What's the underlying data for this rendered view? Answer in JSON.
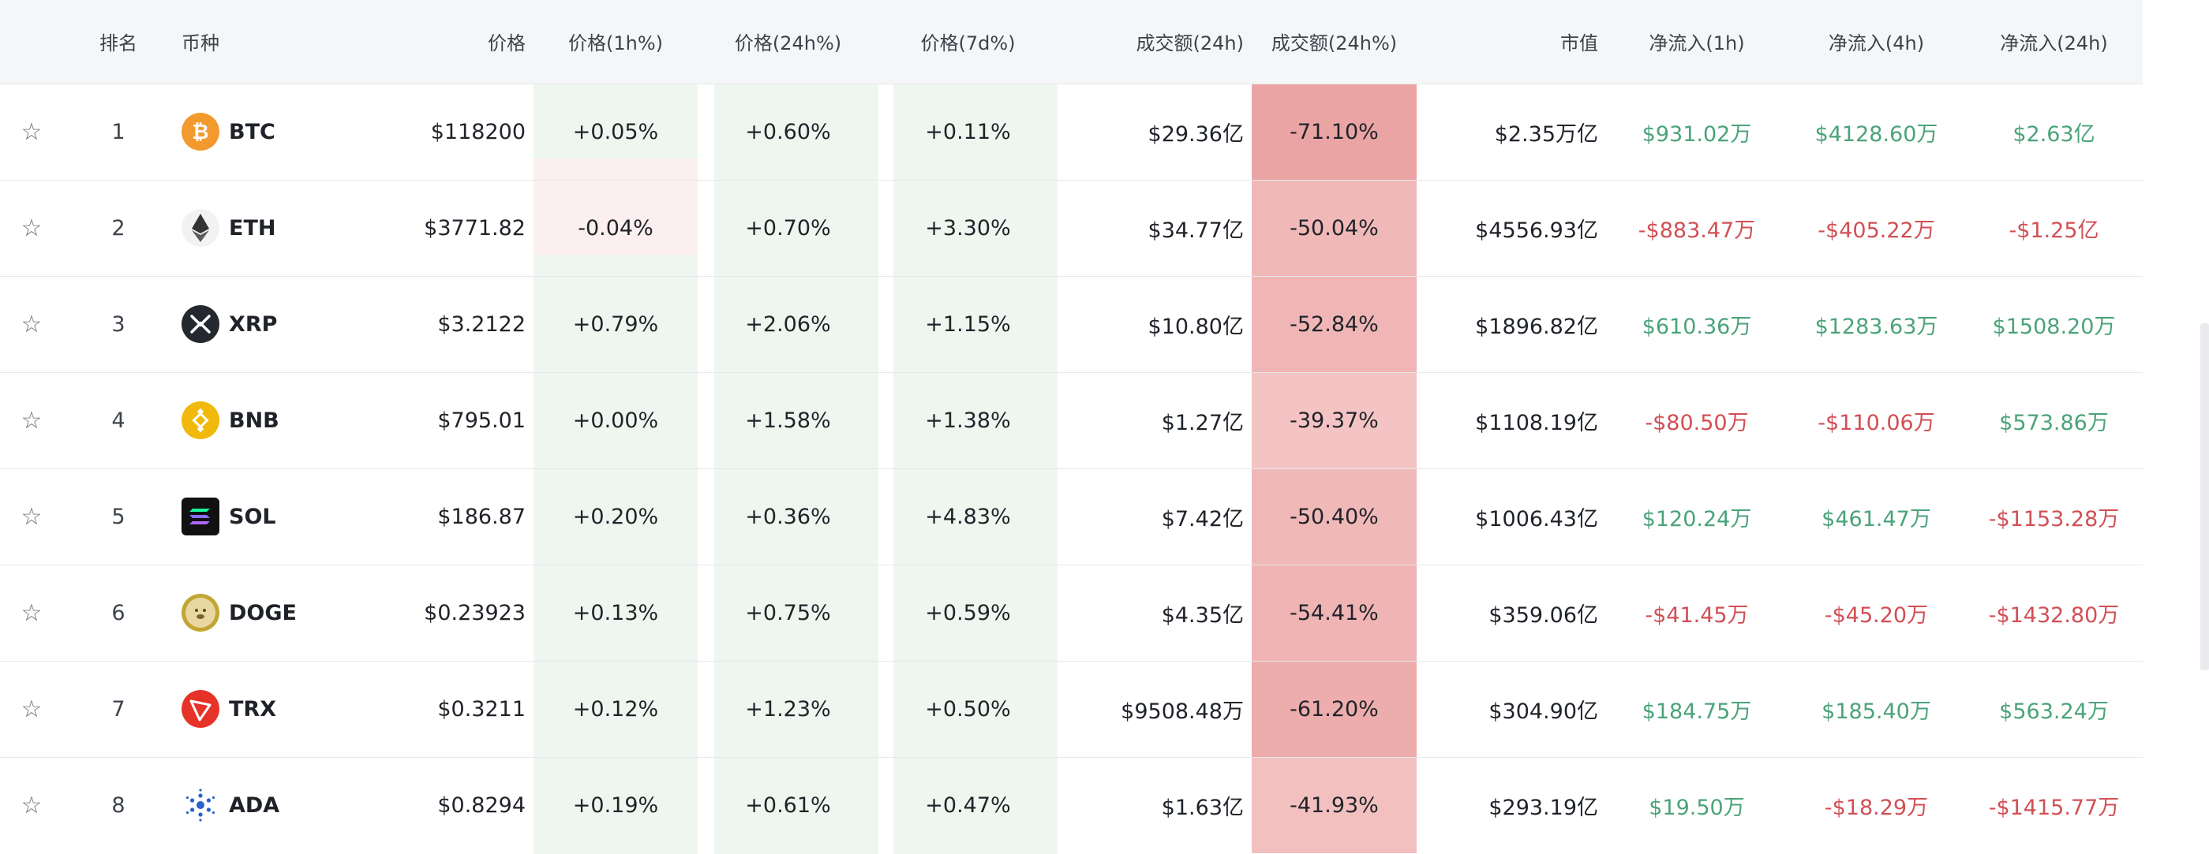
{
  "headers": {
    "rank": "排名",
    "coin": "币种",
    "price": "价格",
    "change_1h": "价格(1h%)",
    "change_24h": "价格(24h%)",
    "change_7d": "价格(7d%)",
    "volume_24h": "成交额(24h)",
    "volume_change_24h": "成交额(24h%)",
    "market_cap": "市值",
    "net_inflow_1h": "净流入(1h)",
    "net_inflow_4h": "净流入(4h)",
    "net_inflow_24h": "净流入(24h)"
  },
  "star_icon": "☆",
  "rows": [
    {
      "rank": "1",
      "symbol": "BTC",
      "icon": "bitcoin-icon",
      "price": "$118200",
      "change_1h": "+0.05%",
      "change_24h": "+0.60%",
      "change_7d": "+0.11%",
      "volume_24h": "$29.36亿",
      "volume_change_24h": "-71.10%",
      "market_cap": "$2.35万亿",
      "net_inflow_1h": "$931.02万",
      "net_inflow_4h": "$4128.60万",
      "net_inflow_24h": "$2.63亿"
    },
    {
      "rank": "2",
      "symbol": "ETH",
      "icon": "ethereum-icon",
      "price": "$3771.82",
      "change_1h": "-0.04%",
      "change_24h": "+0.70%",
      "change_7d": "+3.30%",
      "volume_24h": "$34.77亿",
      "volume_change_24h": "-50.04%",
      "market_cap": "$4556.93亿",
      "net_inflow_1h": "-$883.47万",
      "net_inflow_4h": "-$405.22万",
      "net_inflow_24h": "-$1.25亿"
    },
    {
      "rank": "3",
      "symbol": "XRP",
      "icon": "xrp-icon",
      "price": "$3.2122",
      "change_1h": "+0.79%",
      "change_24h": "+2.06%",
      "change_7d": "+1.15%",
      "volume_24h": "$10.80亿",
      "volume_change_24h": "-52.84%",
      "market_cap": "$1896.82亿",
      "net_inflow_1h": "$610.36万",
      "net_inflow_4h": "$1283.63万",
      "net_inflow_24h": "$1508.20万"
    },
    {
      "rank": "4",
      "symbol": "BNB",
      "icon": "bnb-icon",
      "price": "$795.01",
      "change_1h": "+0.00%",
      "change_24h": "+1.58%",
      "change_7d": "+1.38%",
      "volume_24h": "$1.27亿",
      "volume_change_24h": "-39.37%",
      "market_cap": "$1108.19亿",
      "net_inflow_1h": "-$80.50万",
      "net_inflow_4h": "-$110.06万",
      "net_inflow_24h": "$573.86万"
    },
    {
      "rank": "5",
      "symbol": "SOL",
      "icon": "solana-icon",
      "price": "$186.87",
      "change_1h": "+0.20%",
      "change_24h": "+0.36%",
      "change_7d": "+4.83%",
      "volume_24h": "$7.42亿",
      "volume_change_24h": "-50.40%",
      "market_cap": "$1006.43亿",
      "net_inflow_1h": "$120.24万",
      "net_inflow_4h": "$461.47万",
      "net_inflow_24h": "-$1153.28万"
    },
    {
      "rank": "6",
      "symbol": "DOGE",
      "icon": "dogecoin-icon",
      "price": "$0.23923",
      "change_1h": "+0.13%",
      "change_24h": "+0.75%",
      "change_7d": "+0.59%",
      "volume_24h": "$4.35亿",
      "volume_change_24h": "-54.41%",
      "market_cap": "$359.06亿",
      "net_inflow_1h": "-$41.45万",
      "net_inflow_4h": "-$45.20万",
      "net_inflow_24h": "-$1432.80万"
    },
    {
      "rank": "7",
      "symbol": "TRX",
      "icon": "tron-icon",
      "price": "$0.3211",
      "change_1h": "+0.12%",
      "change_24h": "+1.23%",
      "change_7d": "+0.50%",
      "volume_24h": "$9508.48万",
      "volume_change_24h": "-61.20%",
      "market_cap": "$304.90亿",
      "net_inflow_1h": "$184.75万",
      "net_inflow_4h": "$185.40万",
      "net_inflow_24h": "$563.24万"
    },
    {
      "rank": "8",
      "symbol": "ADA",
      "icon": "cardano-icon",
      "price": "$0.8294",
      "change_1h": "+0.19%",
      "change_24h": "+0.61%",
      "change_7d": "+0.47%",
      "volume_24h": "$1.63亿",
      "volume_change_24h": "-41.93%",
      "market_cap": "$293.19亿",
      "net_inflow_1h": "$19.50万",
      "net_inflow_4h": "-$18.29万",
      "net_inflow_24h": "-$1415.77万"
    }
  ],
  "colors": {
    "positive": "#4aa37a",
    "negative": "#d14f55",
    "header_bg": "#f5f6f8",
    "tint_positive": "#eef6f0",
    "tint_negative": "#fcefef"
  }
}
